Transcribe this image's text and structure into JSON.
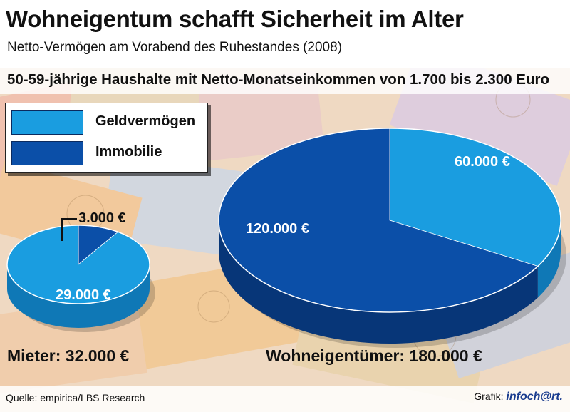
{
  "title": "Wohneigentum schafft Sicherheit im Alter",
  "subtitle": "Netto-Vermögen am Vorabend des Ruhestandes (2008)",
  "subhead": "50-59-jährige Haushalte mit Netto-Monatseinkommen von 1.700 bis 2.300 Euro",
  "legend": [
    {
      "label": "Geldvermögen",
      "color": "#1a9de0"
    },
    {
      "label": "Immobilie",
      "color": "#0b4fa8"
    }
  ],
  "chart_data": [
    {
      "type": "pie",
      "name": "Mieter",
      "total_label": "Mieter: 32.000 €",
      "total": 32000,
      "slices": [
        {
          "category": "Geldvermögen",
          "value": 29000,
          "label": "29.000 €"
        },
        {
          "category": "Immobilie",
          "value": 3000,
          "label": "3.000 €"
        }
      ]
    },
    {
      "type": "pie",
      "name": "Wohneigentümer",
      "total_label": "Wohneigentümer: 180.000 €",
      "total": 180000,
      "slices": [
        {
          "category": "Geldvermögen",
          "value": 60000,
          "label": "60.000 €"
        },
        {
          "category": "Immobilie",
          "value": 120000,
          "label": "120.000 €"
        }
      ]
    }
  ],
  "footer": {
    "source": "Quelle: empirica/LBS Research",
    "credit_prefix": "Grafik:",
    "credit_logo": "infoch@rt."
  }
}
